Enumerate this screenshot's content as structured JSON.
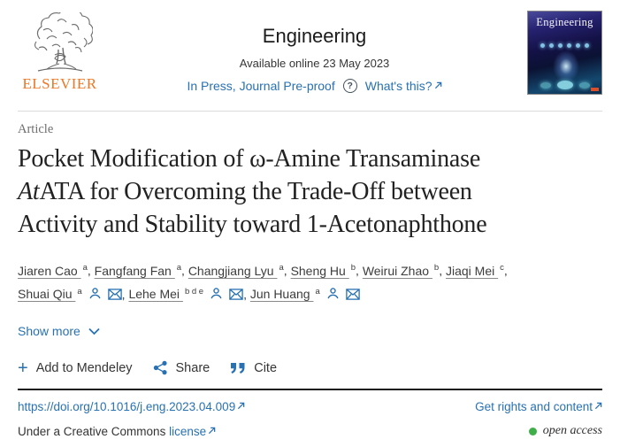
{
  "header": {
    "publisher": "ELSEVIER",
    "journal_title": "Engineering",
    "availability": "Available online 23 May 2023",
    "in_press_label": "In Press, Journal Pre-proof",
    "whats_this_label": "What's this?",
    "cover_title": "Engineering"
  },
  "article": {
    "type_label": "Article",
    "title_line1": "Pocket Modification of ω-Amine Transaminase",
    "title_line2_italic": "At",
    "title_line2_rest": "ATA for Overcoming the Trade-Off between",
    "title_line3": "Activity and Stability toward 1-Acetonaphthone",
    "authors": [
      {
        "name": "Jiaren Cao",
        "sup": "a",
        "has_icons": false
      },
      {
        "name": "Fangfang Fan",
        "sup": "a",
        "has_icons": false
      },
      {
        "name": "Changjiang Lyu",
        "sup": "a",
        "has_icons": false
      },
      {
        "name": "Sheng Hu",
        "sup": "b",
        "has_icons": false
      },
      {
        "name": "Weirui Zhao",
        "sup": "b",
        "has_icons": false
      },
      {
        "name": "Jiaqi Mei",
        "sup": "c",
        "has_icons": false
      },
      {
        "name": "Shuai Qiu",
        "sup": "a",
        "has_icons": true
      },
      {
        "name": "Lehe Mei",
        "sup": "b d e",
        "has_icons": true
      },
      {
        "name": "Jun Huang",
        "sup": "a",
        "has_icons": true
      }
    ],
    "show_more_label": "Show more"
  },
  "actions": {
    "mendeley_label": "Add to Mendeley",
    "share_label": "Share",
    "cite_label": "Cite"
  },
  "footer": {
    "doi": "https://doi.org/10.1016/j.eng.2023.04.009",
    "rights_label": "Get rights and content",
    "license_prefix": "Under a Creative Commons",
    "license_link_label": "license",
    "open_access_label": "open access"
  },
  "colors": {
    "link_blue": "#2871b2",
    "elsevier_orange": "#ee7624",
    "open_access_green": "#3fae49"
  }
}
